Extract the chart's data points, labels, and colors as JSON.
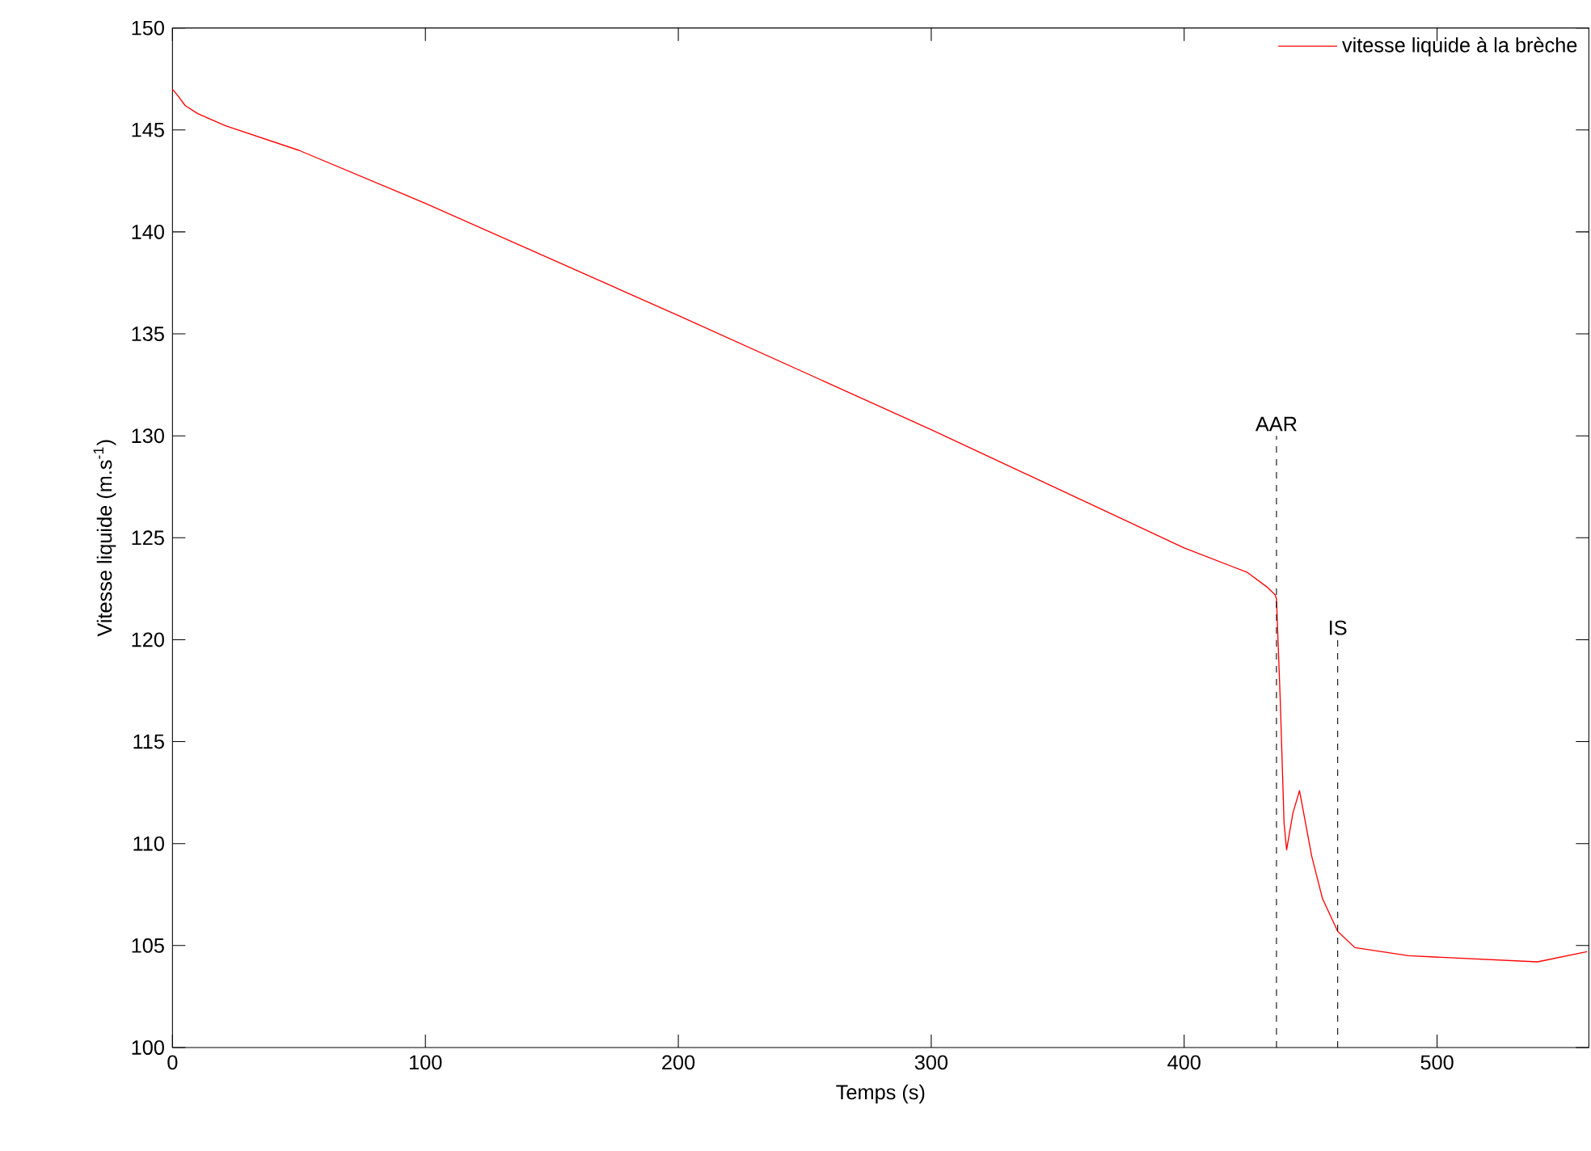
{
  "chart_data": {
    "type": "line",
    "xlabel": "Temps (s)",
    "ylabel": "Vitesse liquide (m.s$^{-1}$)",
    "xlim": [
      0,
      560
    ],
    "ylim": [
      100,
      150
    ],
    "xticks": [
      0,
      100,
      200,
      300,
      400,
      500
    ],
    "yticks": [
      100,
      105,
      110,
      115,
      120,
      125,
      130,
      135,
      140,
      145,
      150
    ],
    "legend": "top right",
    "grid": false,
    "series": [
      {
        "name": "vitesse liquide à la brèche",
        "color": "#ff0000",
        "x": [
          0,
          2,
          5,
          10,
          21,
          50,
          100,
          200,
          300,
          400,
          425,
          432.6,
          436,
          436.5,
          438,
          439.5,
          440.5,
          443,
          445.6,
          450.4,
          454.7,
          460.7,
          467.5,
          488.7,
          539.7,
          559.3
        ],
        "values": [
          147.0,
          146.7,
          146.2,
          145.8,
          145.2,
          144.0,
          141.4,
          135.9,
          130.3,
          124.5,
          123.3,
          122.6,
          122.2,
          122.0,
          117,
          111,
          109.7,
          111.5,
          112.6,
          109.4,
          107.3,
          105.7,
          104.9,
          104.5,
          104.2,
          104.7
        ]
      }
    ],
    "ref_lines": [
      {
        "axis": "x",
        "value": 436.5,
        "line_style": "dashed",
        "color": "#000000"
      },
      {
        "axis": "x",
        "value": 460.7,
        "line_style": "dashed",
        "color": "#000000"
      }
    ],
    "annotations": [
      {
        "text": "AAR",
        "x": 436.5,
        "y": 130
      },
      {
        "text": "IS",
        "x": 460.7,
        "y": 120
      }
    ]
  }
}
